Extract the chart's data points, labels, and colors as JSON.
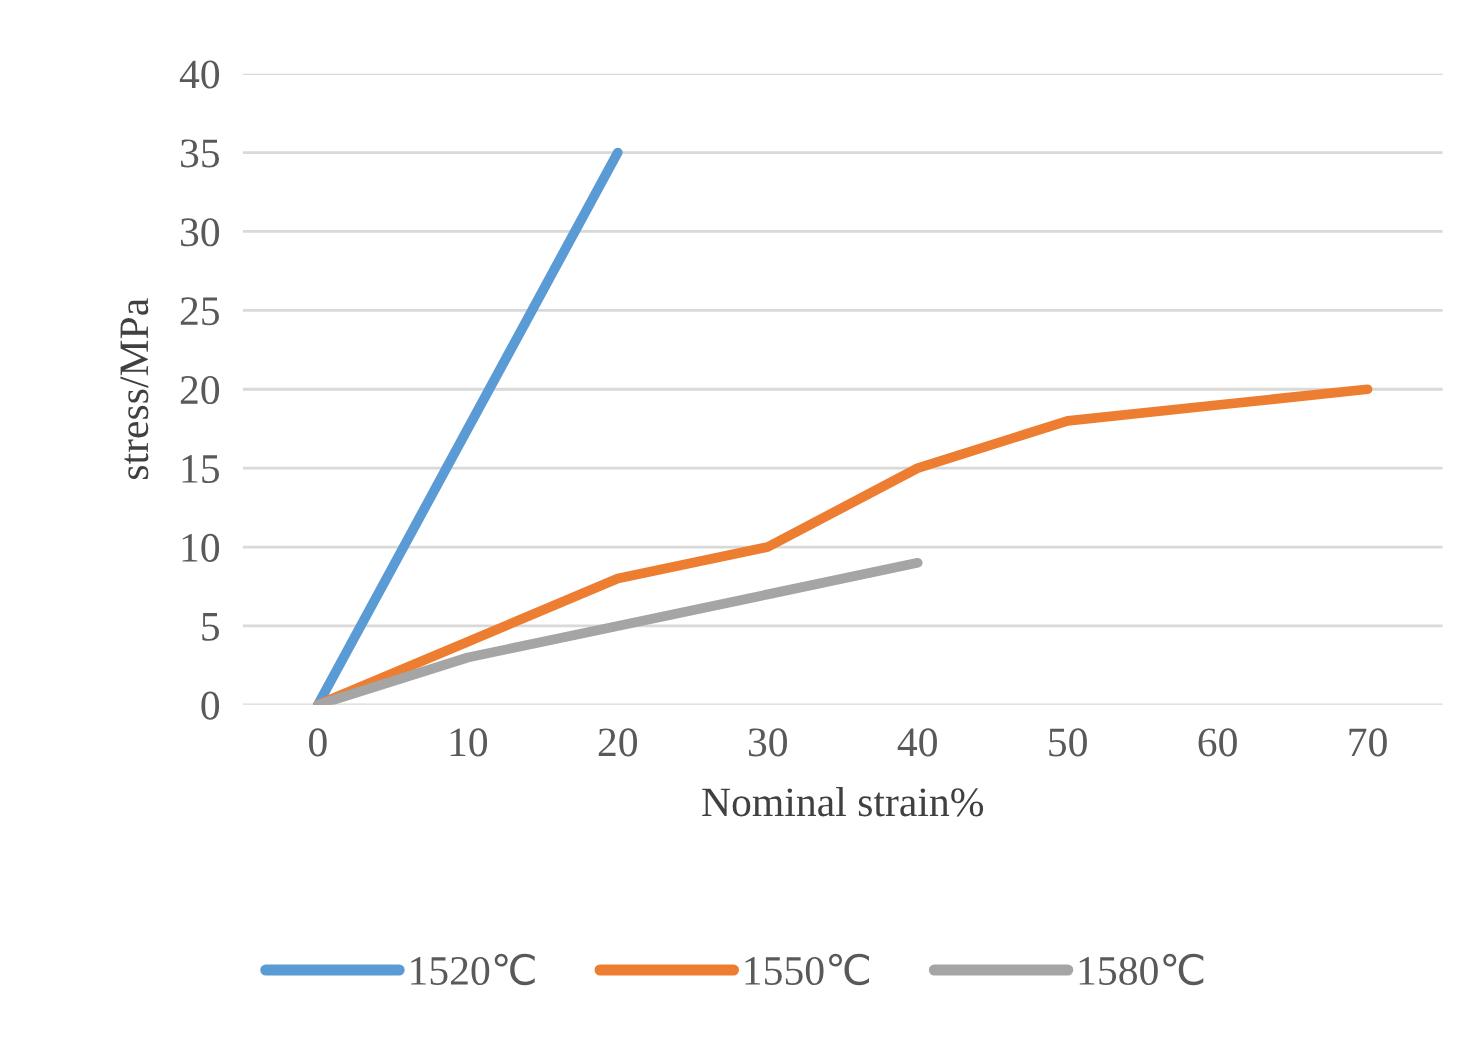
{
  "chart_data": {
    "type": "line",
    "xlabel": "Nominal strain%",
    "ylabel": "stress/MPa",
    "categories": [
      "0",
      "10",
      "20",
      "30",
      "40",
      "50",
      "60",
      "70"
    ],
    "series": [
      {
        "name": "1520℃",
        "color": "#5b9bd5",
        "values": [
          0,
          17.5,
          35,
          null,
          null,
          null,
          null,
          null
        ]
      },
      {
        "name": "1550℃",
        "color": "#ed7d31",
        "values": [
          0,
          4,
          8,
          10,
          15,
          18,
          19,
          20
        ]
      },
      {
        "name": "1580℃",
        "color": "#a5a5a5",
        "values": [
          0,
          3,
          5,
          7,
          9,
          null,
          null,
          null
        ]
      }
    ],
    "ylim": [
      0,
      40
    ],
    "yticks": [
      0,
      5,
      10,
      15,
      20,
      25,
      30,
      35,
      40
    ],
    "grid": "y",
    "legend": "bottom",
    "marker": "none",
    "line_style": "solid"
  }
}
